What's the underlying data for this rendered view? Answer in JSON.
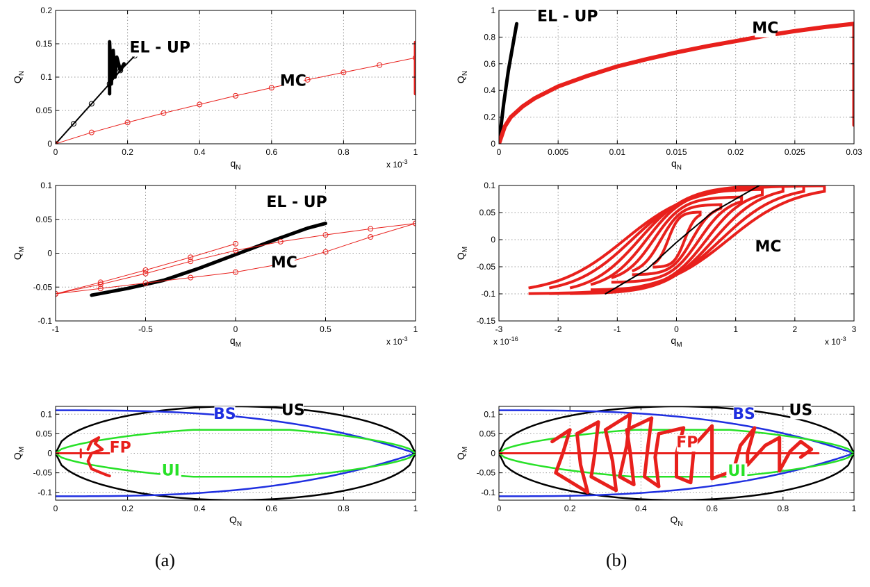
{
  "captions": {
    "a": "(a)",
    "b": "(b)"
  },
  "colors": {
    "red": "#e8201c",
    "black": "#000000",
    "blue": "#1f2fe0",
    "green": "#27e127",
    "grid": "#9a9a9a"
  },
  "chart_data": [
    {
      "id": "a-top",
      "type": "line",
      "xlabel": "q_N",
      "ylabel": "Q_N",
      "exponent": "x 10^-3",
      "xlim": [
        0,
        1
      ],
      "ylim": [
        0,
        0.2
      ],
      "xticks": [
        0,
        0.2,
        0.4,
        0.6,
        0.8,
        1
      ],
      "xticklabels": [
        "0",
        "0.2",
        "0.4",
        "0.6",
        "0.8",
        "1"
      ],
      "yticks": [
        0,
        0.05,
        0.1,
        0.15,
        0.2
      ],
      "yticklabels": [
        "0",
        "0.05",
        "0.1",
        "0.15",
        "0.2"
      ],
      "annotations": [
        {
          "text": "EL - UP",
          "x": 0.29,
          "y": 0.137,
          "color": "#000000"
        },
        {
          "text": "MC",
          "x": 0.66,
          "y": 0.087,
          "color": "#000000"
        }
      ],
      "series": [
        {
          "color": "#000000",
          "marker": "o",
          "width": 2,
          "points": [
            [
              0,
              0
            ],
            [
              0.05,
              0.03
            ],
            [
              0.1,
              0.06
            ],
            [
              0.15,
              0.09
            ],
            [
              0.18,
              0.11
            ],
            [
              0.22,
              0.132
            ]
          ]
        },
        {
          "color": "#000000",
          "width": 5,
          "points": [
            [
              0.15,
              0.075
            ],
            [
              0.15,
              0.153
            ],
            [
              0.155,
              0.09
            ],
            [
              0.16,
              0.14
            ],
            [
              0.165,
              0.1
            ],
            [
              0.17,
              0.13
            ],
            [
              0.18,
              0.11
            ],
            [
              0.19,
              0.12
            ]
          ]
        },
        {
          "color": "#e8201c",
          "marker": "o",
          "width": 1,
          "points": [
            [
              0,
              0
            ],
            [
              0.1,
              0.017
            ],
            [
              0.2,
              0.032
            ],
            [
              0.3,
              0.046
            ],
            [
              0.4,
              0.059
            ],
            [
              0.5,
              0.072
            ],
            [
              0.6,
              0.084
            ],
            [
              0.7,
              0.096
            ],
            [
              0.8,
              0.107
            ],
            [
              0.9,
              0.118
            ],
            [
              1.0,
              0.129
            ]
          ]
        },
        {
          "color": "#e8201c",
          "width": 5,
          "points": [
            [
              1.0,
              0.075
            ],
            [
              1.0,
              0.152
            ]
          ]
        }
      ]
    },
    {
      "id": "b-top",
      "type": "line",
      "xlabel": "q_N",
      "ylabel": "Q_N",
      "xlim": [
        0,
        0.03
      ],
      "ylim": [
        0,
        1
      ],
      "xticks": [
        0,
        0.005,
        0.01,
        0.015,
        0.02,
        0.025,
        0.03
      ],
      "xticklabels": [
        "0",
        "0.005",
        "0.01",
        "0.015",
        "0.02",
        "0.025",
        "0.03"
      ],
      "yticks": [
        0,
        0.2,
        0.4,
        0.6,
        0.8,
        1
      ],
      "yticklabels": [
        "0",
        "0.2",
        "0.4",
        "0.6",
        "0.8",
        "1"
      ],
      "annotations": [
        {
          "text": "EL - UP",
          "x": 0.0058,
          "y": 0.92,
          "color": "#000000"
        },
        {
          "text": "MC",
          "x": 0.0225,
          "y": 0.83,
          "color": "#000000"
        }
      ],
      "series": [
        {
          "color": "#000000",
          "width": 5,
          "points": [
            [
              0,
              0
            ],
            [
              0.0004,
              0.3
            ],
            [
              0.0008,
              0.55
            ],
            [
              0.0012,
              0.75
            ],
            [
              0.0015,
              0.9
            ]
          ]
        },
        {
          "color": "#e8201c",
          "width": 6,
          "points": [
            [
              0,
              0
            ],
            [
              0.0005,
              0.13
            ],
            [
              0.001,
              0.2
            ],
            [
              0.002,
              0.28
            ],
            [
              0.003,
              0.34
            ],
            [
              0.005,
              0.43
            ],
            [
              0.0075,
              0.51
            ],
            [
              0.01,
              0.58
            ],
            [
              0.0125,
              0.635
            ],
            [
              0.015,
              0.685
            ],
            [
              0.0175,
              0.73
            ],
            [
              0.02,
              0.77
            ],
            [
              0.0225,
              0.81
            ],
            [
              0.025,
              0.845
            ],
            [
              0.0275,
              0.875
            ],
            [
              0.03,
              0.9
            ]
          ]
        },
        {
          "color": "#e8201c",
          "width": 5,
          "points": [
            [
              0.03,
              0.88
            ],
            [
              0.03,
              0.14
            ]
          ]
        }
      ]
    },
    {
      "id": "a-mid",
      "type": "line",
      "xlabel": "q_M",
      "ylabel": "Q_M",
      "exponent": "x 10^-3",
      "xlim": [
        -1,
        1
      ],
      "ylim": [
        -0.1,
        0.1
      ],
      "xticks": [
        -1,
        -0.5,
        0,
        0.5,
        1
      ],
      "xticklabels": [
        "-1",
        "-0.5",
        "0",
        "0.5",
        "1"
      ],
      "yticks": [
        -0.1,
        -0.05,
        0,
        0.05,
        0.1
      ],
      "yticklabels": [
        "-0.1",
        "-0.05",
        "0",
        "0.05",
        "0.1"
      ],
      "annotations": [
        {
          "text": "EL - UP",
          "x": 0.34,
          "y": 0.068,
          "color": "#000000"
        },
        {
          "text": "MC",
          "x": 0.27,
          "y": -0.021,
          "color": "#000000"
        }
      ],
      "series": [
        {
          "color": "#000000",
          "width": 5,
          "points": [
            [
              -0.8,
              -0.062
            ],
            [
              -0.6,
              -0.052
            ],
            [
              -0.4,
              -0.04
            ],
            [
              -0.2,
              -0.022
            ],
            [
              0,
              -0.002
            ],
            [
              0.2,
              0.018
            ],
            [
              0.4,
              0.037
            ],
            [
              0.5,
              0.044
            ]
          ]
        },
        {
          "color": "#e8201c",
          "marker": "o",
          "width": 1,
          "points": [
            [
              -1,
              -0.06
            ],
            [
              -0.75,
              -0.052
            ],
            [
              -0.5,
              -0.044
            ],
            [
              -0.25,
              -0.036
            ],
            [
              0,
              -0.028
            ],
            [
              0.25,
              -0.016
            ],
            [
              0.5,
              0.002
            ],
            [
              0.75,
              0.024
            ],
            [
              1,
              0.044
            ]
          ]
        },
        {
          "color": "#e8201c",
          "marker": "o",
          "width": 1,
          "points": [
            [
              1,
              0.044
            ],
            [
              0.75,
              0.036
            ],
            [
              0.5,
              0.027
            ],
            [
              0.25,
              0.017
            ],
            [
              0,
              0.004
            ],
            [
              -0.25,
              -0.012
            ],
            [
              -0.5,
              -0.03
            ],
            [
              -0.75,
              -0.046
            ],
            [
              -1,
              -0.06
            ]
          ]
        },
        {
          "color": "#e8201c",
          "marker": "o",
          "width": 1,
          "points": [
            [
              -1,
              -0.06
            ],
            [
              -0.75,
              -0.043
            ],
            [
              -0.5,
              -0.025
            ],
            [
              -0.25,
              -0.006
            ],
            [
              0,
              0.014
            ]
          ]
        }
      ]
    },
    {
      "id": "b-mid",
      "type": "line",
      "xlabel": "q_M",
      "ylabel": "Q_M",
      "exponent": "x 10^-3",
      "exponent_left": "x 10^-16",
      "xlim": [
        -3,
        3
      ],
      "ylim": [
        -0.15,
        0.1
      ],
      "xticks": [
        -3,
        -2,
        -1,
        0,
        1,
        2,
        3
      ],
      "xticklabels": [
        "-3",
        "-2",
        "-1",
        "0",
        "1",
        "2",
        "3"
      ],
      "yticks": [
        -0.15,
        -0.1,
        -0.05,
        0,
        0.05,
        0.1
      ],
      "yticklabels": [
        "-0.15",
        "-0.1",
        "-0.05",
        "0",
        "0.05",
        "0.1"
      ],
      "annotations": [
        {
          "text": "MC",
          "x": 1.55,
          "y": -0.022,
          "color": "#000000"
        }
      ],
      "loops": {
        "color": "#e8201c",
        "amplitudes": [
          0.4,
          0.75,
          1.1,
          1.45,
          1.8,
          2.15,
          2.5
        ]
      },
      "series": [
        {
          "color": "#000000",
          "width": 2,
          "points": [
            [
              -1.2,
              -0.1
            ],
            [
              -0.5,
              -0.055
            ],
            [
              0,
              -0.005
            ],
            [
              0.6,
              0.05
            ],
            [
              1.4,
              0.1
            ]
          ]
        }
      ]
    },
    {
      "id": "a-bot",
      "type": "line",
      "xlabel": "Q_N",
      "ylabel": "Q_M",
      "xlim": [
        0,
        1
      ],
      "ylim": [
        -0.12,
        0.12
      ],
      "xticks": [
        0,
        0.2,
        0.4,
        0.6,
        0.8,
        1
      ],
      "xticklabels": [
        "0",
        "0.2",
        "0.4",
        "0.6",
        "0.8",
        "1"
      ],
      "yticks": [
        -0.1,
        -0.05,
        0,
        0.05,
        0.1
      ],
      "yticklabels": [
        "-0.1",
        "-0.05",
        "0",
        "0.05",
        "0.1"
      ],
      "annotations": [
        {
          "text": "BS",
          "x": 0.47,
          "y": 0.088,
          "color": "#1f2fe0"
        },
        {
          "text": "US",
          "x": 0.66,
          "y": 0.098,
          "color": "#000000"
        },
        {
          "text": "FP",
          "x": 0.18,
          "y": 0.002,
          "color": "#e8201c"
        },
        {
          "text": "UI",
          "x": 0.32,
          "y": -0.057,
          "color": "#27e127"
        }
      ],
      "envelopes": {
        "US": 0.12,
        "BS": 0.11,
        "UI": 0.06
      },
      "series": [
        {
          "color": "#e8201c",
          "width": 3,
          "points": [
            [
              0,
              0
            ],
            [
              0.15,
              0
            ]
          ]
        },
        {
          "color": "#e8201c",
          "width": 3,
          "points": [
            [
              0.07,
              -0.01
            ],
            [
              0.07,
              0.01
            ]
          ]
        },
        {
          "color": "#e8201c",
          "width": 4,
          "points": [
            [
              0.09,
              0.01
            ],
            [
              0.1,
              0.03
            ],
            [
              0.12,
              0.04
            ],
            [
              0.11,
              0.025
            ],
            [
              0.13,
              0.01
            ],
            [
              0.1,
              0
            ],
            [
              0.09,
              -0.02
            ],
            [
              0.1,
              -0.04
            ],
            [
              0.14,
              -0.055
            ],
            [
              0.15,
              -0.058
            ]
          ]
        }
      ]
    },
    {
      "id": "b-bot",
      "type": "line",
      "xlabel": "Q_N",
      "ylabel": "Q_M",
      "xlim": [
        0,
        1
      ],
      "ylim": [
        -0.12,
        0.12
      ],
      "xticks": [
        0,
        0.2,
        0.4,
        0.6,
        0.8,
        1
      ],
      "xticklabels": [
        "0",
        "0.2",
        "0.4",
        "0.6",
        "0.8",
        "1"
      ],
      "yticks": [
        -0.1,
        -0.05,
        0,
        0.05,
        0.1
      ],
      "yticklabels": [
        "-0.1",
        "-0.05",
        "0",
        "0.05",
        "0.1"
      ],
      "annotations": [
        {
          "text": "BS",
          "x": 0.69,
          "y": 0.088,
          "color": "#1f2fe0"
        },
        {
          "text": "US",
          "x": 0.85,
          "y": 0.098,
          "color": "#000000"
        },
        {
          "text": "FP",
          "x": 0.53,
          "y": 0.015,
          "color": "#e8201c"
        },
        {
          "text": "UI",
          "x": 0.67,
          "y": -0.058,
          "color": "#27e127"
        }
      ],
      "envelopes": {
        "US": 0.12,
        "BS": 0.11,
        "UI": 0.06
      },
      "series": [
        {
          "color": "#e8201c",
          "width": 3,
          "points": [
            [
              0,
              0
            ],
            [
              0.9,
              0
            ]
          ]
        },
        {
          "color": "#e8201c",
          "width": 5,
          "points": [
            [
              0.15,
              0.03
            ],
            [
              0.2,
              0.06
            ],
            [
              0.18,
              0
            ],
            [
              0.16,
              -0.05
            ],
            [
              0.25,
              -0.1
            ],
            [
              0.23,
              -0.03
            ],
            [
              0.22,
              0.05
            ],
            [
              0.28,
              0.08
            ],
            [
              0.27,
              0
            ],
            [
              0.26,
              -0.06
            ],
            [
              0.33,
              -0.095
            ],
            [
              0.32,
              -0.02
            ],
            [
              0.3,
              0.06
            ],
            [
              0.37,
              0.1
            ],
            [
              0.36,
              0.02
            ],
            [
              0.34,
              -0.06
            ],
            [
              0.38,
              -0.08
            ],
            [
              0.37,
              0
            ],
            [
              0.36,
              0.06
            ],
            [
              0.43,
              0.09
            ],
            [
              0.42,
              0.02
            ],
            [
              0.41,
              -0.06
            ],
            [
              0.45,
              -0.085
            ],
            [
              0.44,
              -0.01
            ],
            [
              0.45,
              0.05
            ],
            [
              0.52,
              0.065
            ],
            [
              0.5,
              0
            ],
            [
              0.5,
              -0.06
            ],
            [
              0.54,
              -0.075
            ],
            [
              0.55,
              0.02
            ],
            [
              0.6,
              0.07
            ],
            [
              0.6,
              -0.01
            ],
            [
              0.6,
              -0.065
            ],
            [
              0.66,
              -0.045
            ],
            [
              0.68,
              0.02
            ],
            [
              0.72,
              0.065
            ],
            [
              0.7,
              0
            ],
            [
              0.7,
              -0.03
            ],
            [
              0.75,
              0.02
            ],
            [
              0.79,
              0.04
            ],
            [
              0.79,
              -0.045
            ],
            [
              0.82,
              0.005
            ],
            [
              0.85,
              0.03
            ],
            [
              0.88,
              0.01
            ],
            [
              0.85,
              -0.01
            ]
          ]
        }
      ]
    }
  ]
}
